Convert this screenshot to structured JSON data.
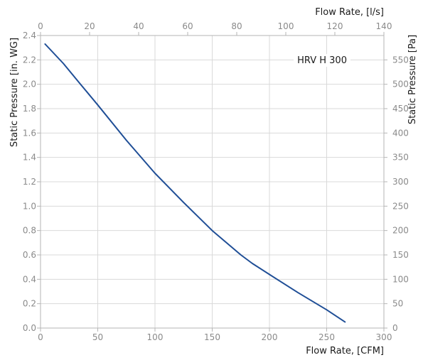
{
  "chart_data": {
    "type": "line",
    "title": "",
    "annotation": "HRV H 300",
    "xlabel": "Flow Rate, [CFM]",
    "x2label": "Flow Rate, [l/s]",
    "ylabel": "Static Pressure [in. WG]",
    "y2label": "Static Pressure [Pa]",
    "xlim": [
      0,
      300
    ],
    "ylim": [
      0,
      2.4
    ],
    "x2lim": [
      0,
      140
    ],
    "y2lim": [
      0,
      600
    ],
    "x_ticks": [
      "0",
      "50",
      "100",
      "150",
      "200",
      "250",
      "300"
    ],
    "y_ticks": [
      "0.0",
      "0.2",
      "0.4",
      "0.6",
      "0.8",
      "1.0",
      "1.2",
      "1.4",
      "1.6",
      "1.8",
      "2.0",
      "2.2",
      "2.4"
    ],
    "x2_ticks": [
      "0",
      "20",
      "40",
      "60",
      "80",
      "100",
      "120",
      "140"
    ],
    "y2_ticks": [
      "0",
      "50",
      "100",
      "150",
      "200",
      "250",
      "300",
      "350",
      "400",
      "450",
      "500",
      "550"
    ],
    "grid": true,
    "line_color": "#1f4e96",
    "series": [
      {
        "name": "HRV H 300",
        "x": [
          4,
          20,
          35,
          50,
          75,
          100,
          125,
          150,
          175,
          185,
          200,
          225,
          250,
          266
        ],
        "y": [
          2.33,
          2.17,
          2.0,
          1.83,
          1.54,
          1.27,
          1.03,
          0.8,
          0.6,
          0.53,
          0.44,
          0.29,
          0.15,
          0.05
        ]
      }
    ]
  }
}
